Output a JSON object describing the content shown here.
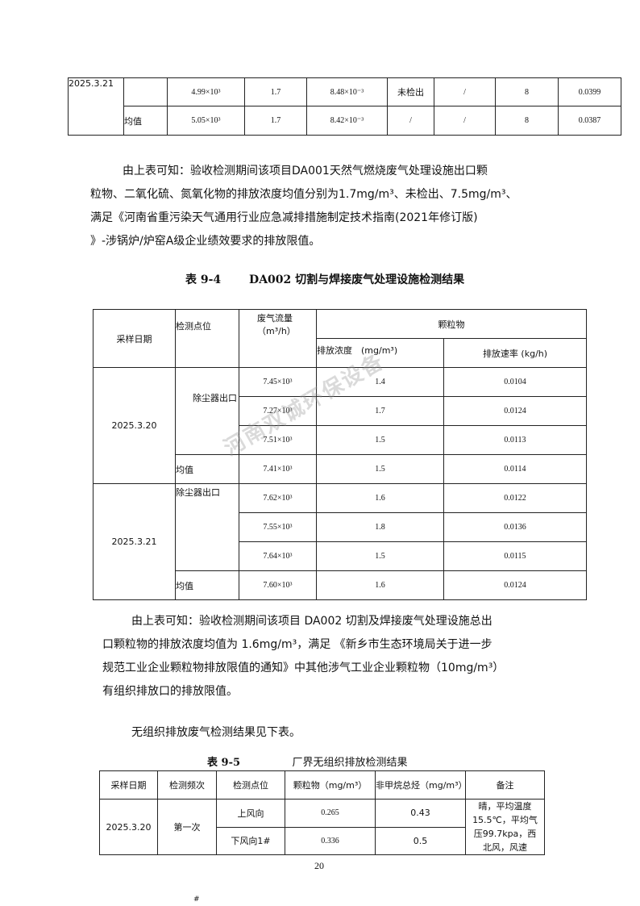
{
  "table_top": {
    "rows": [
      {
        "date": "2025.3.21",
        "point": "",
        "flow": "4.99×10³",
        "conc": "1.7",
        "rate": "8.48×10⁻³",
        "c2": "未检出",
        "c3": "/",
        "c4": "8",
        "c5": "0.0399"
      },
      {
        "date": "",
        "point": "均值",
        "flow": "5.05×10³",
        "conc": "1.7",
        "rate": "8.42×10⁻³",
        "c2": "/",
        "c3": "/",
        "c4": "8",
        "c5": "0.0387"
      }
    ]
  },
  "paragraph1": {
    "lines": [
      "由上表可知：验收检测期间该项目DA001天然气燃烧废气处理设施出口颗",
      "粒物、二氧化硫、氮氧化物的排放浓度均值分别为1.7mg/m³、未检出、7.5mg/m³、",
      "满足《河南省重污染天气通用行业应急减排措施制定技术指南(2021年修订版)",
      "》-涉锅炉/炉窑A级企业绩效要求的排放限值。"
    ]
  },
  "table_9_4": {
    "caption_no": "表 9-4",
    "caption_title": "DA002 切割与焊接废气处理设施检测结果",
    "headers": {
      "date": "采样日期",
      "point": "检测点位",
      "flow": "废气流量（m³/h）",
      "pollutant": "颗粒物",
      "conc": "排放浓度　(mg/m³)",
      "rate": "排放速率 (kg/h)"
    },
    "groups": [
      {
        "date": "2025.3.20",
        "point": "除尘器出口",
        "rows": [
          {
            "flow": "7.45×10³",
            "conc": "1.4",
            "rate": "0.0104"
          },
          {
            "flow": "7.27×10³",
            "conc": "1.7",
            "rate": "0.0124"
          },
          {
            "flow": "7.51×10³",
            "conc": "1.5",
            "rate": "0.0113"
          }
        ],
        "avg": {
          "label": "均值",
          "flow": "7.41×10³",
          "conc": "1.5",
          "rate": "0.0114"
        }
      },
      {
        "date": "2025.3.21",
        "point": "除尘器出口",
        "rows": [
          {
            "flow": "7.62×10³",
            "conc": "1.6",
            "rate": "0.0122"
          },
          {
            "flow": "7.55×10³",
            "conc": "1.8",
            "rate": "0.0136"
          },
          {
            "flow": "7.64×10³",
            "conc": "1.5",
            "rate": "0.0115"
          }
        ],
        "avg": {
          "label": "均值",
          "flow": "7.60×10³",
          "conc": "1.6",
          "rate": "0.0124"
        }
      }
    ]
  },
  "paragraph2": {
    "lines": [
      "由上表可知：验收检测期间该项目 DA002 切割及焊接废气处理设施总出",
      "口颗粒物的排放浓度均值为 1.6mg/m³，满足 《新乡市生态环境局关于进一步",
      "规范工业企业颗粒物排放限值的通知》中其他涉气工业企业颗粒物（10mg/m³）",
      "有组织排放口的排放限值。"
    ]
  },
  "paragraph3": "无组织排放废气检测结果见下表。",
  "table_9_5": {
    "caption_no": "表 9-5",
    "caption_title": "厂界无组织排放检测结果",
    "headers": [
      "采样日期",
      "检测频次",
      "检测点位",
      "颗粒物（mg/m³）",
      "非甲烷总烃（mg/m³）",
      "备注"
    ],
    "date": "2025.3.20",
    "freq": "第一次",
    "rows": [
      {
        "point": "上风向",
        "pm": "0.265",
        "nmhc": "0.43"
      },
      {
        "point": "下风向1#",
        "pm": "0.336",
        "nmhc": "0.5"
      }
    ],
    "note": "晴，平均温度15.5℃，平均气压99.7kpa，西北风，风速"
  },
  "page_number": "20",
  "footer_mark": "#",
  "watermark": "河南双诚环保设备"
}
